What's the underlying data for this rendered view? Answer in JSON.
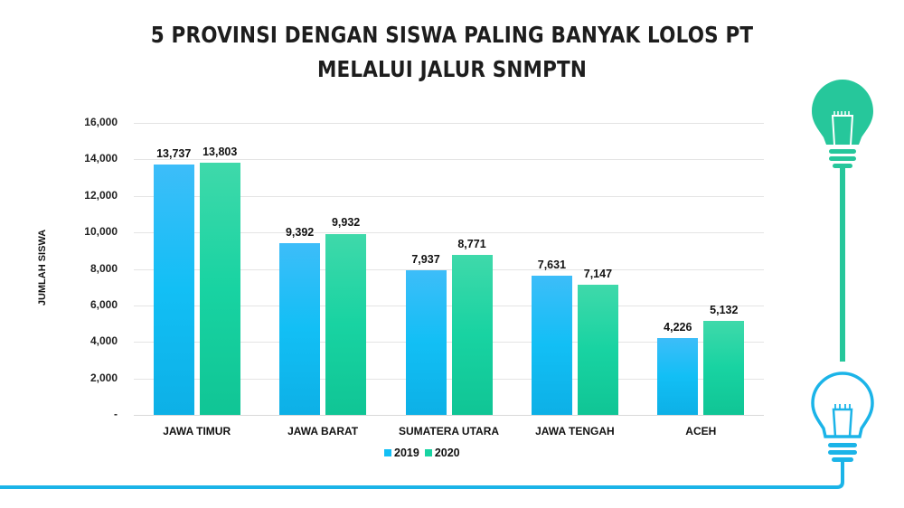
{
  "title": {
    "line1": "5 PROVINSI DENGAN SISWA PALING BANYAK LOLOS PT",
    "line2": "MELALUI JALUR SNMPTN"
  },
  "colors": {
    "series_2019": "#12bff5",
    "series_2020": "#18d3a2",
    "accent_line": "#1bb4e8",
    "top_bulb": "#26c79b",
    "bottom_bulb": "#1bb4e8"
  },
  "icons": [
    "lightbulb-filled-icon",
    "lightbulb-outline-icon"
  ],
  "chart_data": {
    "type": "bar",
    "title": "5 PROVINSI DENGAN SISWA PALING BANYAK LOLOS PT MELALUI JALUR SNMPTN",
    "xlabel": "",
    "ylabel": "JUMLAH SISWA",
    "ylim": [
      0,
      16000
    ],
    "yticks": [
      "-",
      "2,000",
      "4,000",
      "6,000",
      "8,000",
      "10,000",
      "12,000",
      "14,000",
      "16,000"
    ],
    "grid": true,
    "legend_position": "bottom",
    "categories": [
      "JAWA TIMUR",
      "JAWA BARAT",
      "SUMATERA UTARA",
      "JAWA TENGAH",
      "ACEH"
    ],
    "series": [
      {
        "name": "2019",
        "values": [
          13737,
          9392,
          7937,
          7631,
          4226
        ],
        "labels": [
          "13,737",
          "9,392",
          "7,937",
          "7,631",
          "4,226"
        ]
      },
      {
        "name": "2020",
        "values": [
          13803,
          9932,
          8771,
          7147,
          5132
        ],
        "labels": [
          "13,803",
          "9,932",
          "8,771",
          "7,147",
          "5,132"
        ]
      }
    ]
  }
}
